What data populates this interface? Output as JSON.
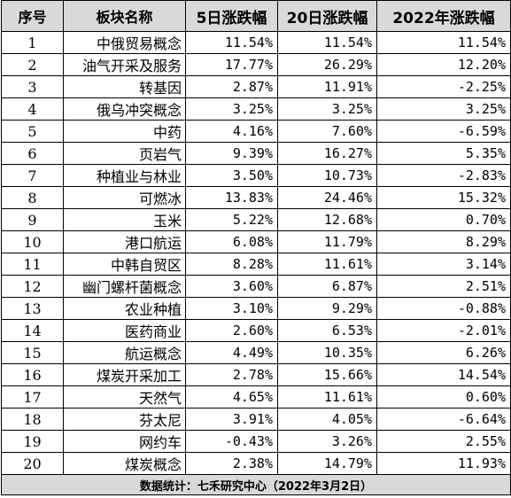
{
  "headers": [
    "序号",
    "板块名称",
    "5日涨跌幅",
    "20日涨跌幅",
    "2022年涨跌幅"
  ],
  "rows": [
    {
      "idx": "1",
      "name": "中俄贸易概念",
      "d5": "11.54%",
      "d20": "11.54%",
      "y2022": "11.54%"
    },
    {
      "idx": "2",
      "name": "油气开采及服务",
      "d5": "17.77%",
      "d20": "26.29%",
      "y2022": "12.20%"
    },
    {
      "idx": "3",
      "name": "转基因",
      "d5": "2.87%",
      "d20": "11.91%",
      "y2022": "-2.25%"
    },
    {
      "idx": "4",
      "name": "俄乌冲突概念",
      "d5": "3.25%",
      "d20": "3.25%",
      "y2022": "3.25%"
    },
    {
      "idx": "5",
      "name": "中药",
      "d5": "4.16%",
      "d20": "7.60%",
      "y2022": "-6.59%"
    },
    {
      "idx": "6",
      "name": "页岩气",
      "d5": "9.39%",
      "d20": "16.27%",
      "y2022": "5.35%"
    },
    {
      "idx": "7",
      "name": "种植业与林业",
      "d5": "3.50%",
      "d20": "10.73%",
      "y2022": "-2.83%"
    },
    {
      "idx": "8",
      "name": "可燃冰",
      "d5": "13.83%",
      "d20": "24.46%",
      "y2022": "15.32%"
    },
    {
      "idx": "9",
      "name": "玉米",
      "d5": "5.22%",
      "d20": "12.68%",
      "y2022": "0.70%"
    },
    {
      "idx": "10",
      "name": "港口航运",
      "d5": "6.08%",
      "d20": "11.79%",
      "y2022": "8.29%"
    },
    {
      "idx": "11",
      "name": "中韩自贸区",
      "d5": "8.28%",
      "d20": "11.61%",
      "y2022": "3.14%"
    },
    {
      "idx": "12",
      "name": "幽门螺杆菌概念",
      "d5": "3.60%",
      "d20": "6.87%",
      "y2022": "2.51%"
    },
    {
      "idx": "13",
      "name": "农业种植",
      "d5": "3.10%",
      "d20": "9.29%",
      "y2022": "-0.88%"
    },
    {
      "idx": "14",
      "name": "医药商业",
      "d5": "2.60%",
      "d20": "6.53%",
      "y2022": "-2.01%"
    },
    {
      "idx": "15",
      "name": "航运概念",
      "d5": "4.49%",
      "d20": "10.35%",
      "y2022": "6.26%"
    },
    {
      "idx": "16",
      "name": "煤炭开采加工",
      "d5": "2.78%",
      "d20": "15.66%",
      "y2022": "14.54%"
    },
    {
      "idx": "17",
      "name": "天然气",
      "d5": "4.65%",
      "d20": "11.61%",
      "y2022": "0.60%"
    },
    {
      "idx": "18",
      "name": "芬太尼",
      "d5": "3.91%",
      "d20": "4.05%",
      "y2022": "-6.64%"
    },
    {
      "idx": "19",
      "name": "网约车",
      "d5": "-0.43%",
      "d20": "3.26%",
      "y2022": "2.55%"
    },
    {
      "idx": "20",
      "name": "煤炭概念",
      "d5": "2.38%",
      "d20": "14.79%",
      "y2022": "11.93%"
    }
  ],
  "footer": "数据统计：七禾研究中心（2022年3月2日）",
  "colors": {
    "header_bg": "#d9d9d9",
    "border": "#000000"
  }
}
